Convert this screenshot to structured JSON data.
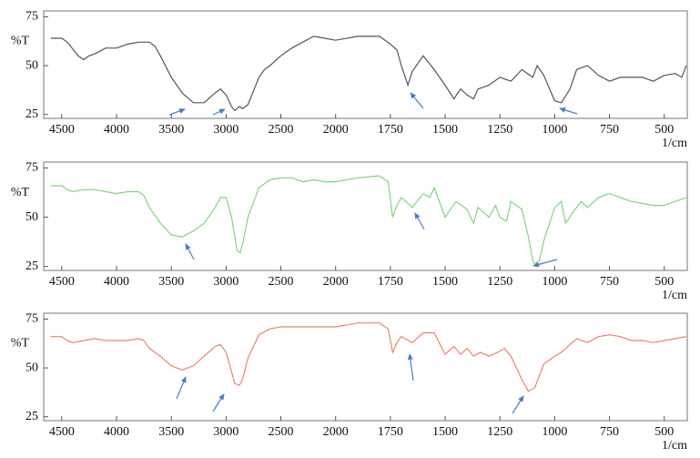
{
  "chart_data": [
    {
      "type": "line",
      "y_label": "%T",
      "x_label": "1/cm",
      "color": "#555555",
      "xlim": [
        4665,
        395
      ],
      "ylim": [
        23,
        78
      ],
      "xticks": [
        4500,
        4000,
        3500,
        3000,
        2500,
        2000,
        1750,
        1500,
        1250,
        1000,
        750,
        500
      ],
      "yticks": [
        25,
        50,
        75
      ],
      "x": [
        4600,
        4500,
        4450,
        4350,
        4300,
        4250,
        4200,
        4100,
        4000,
        3900,
        3800,
        3700,
        3650,
        3600,
        3500,
        3400,
        3300,
        3200,
        3100,
        3050,
        3000,
        2950,
        2920,
        2880,
        2850,
        2800,
        2700,
        2650,
        2600,
        2500,
        2400,
        2300,
        2200,
        2100,
        2000,
        1900,
        1800,
        1750,
        1720,
        1700,
        1670,
        1650,
        1600,
        1550,
        1500,
        1460,
        1430,
        1400,
        1370,
        1350,
        1300,
        1250,
        1200,
        1150,
        1100,
        1080,
        1050,
        1000,
        970,
        930,
        900,
        850,
        800,
        750,
        700,
        650,
        600,
        550,
        500,
        450,
        420,
        400
      ],
      "values": [
        64,
        64,
        62,
        55,
        53,
        55,
        56,
        59,
        59,
        61,
        62,
        62,
        60,
        55,
        44,
        36,
        31,
        31,
        36,
        38,
        35,
        29,
        27,
        29,
        28,
        30,
        44,
        48,
        50,
        55,
        59,
        62,
        65,
        64,
        63,
        65,
        65,
        61,
        58,
        50,
        40,
        47,
        55,
        48,
        40,
        33,
        38,
        35,
        33,
        38,
        40,
        44,
        42,
        48,
        44,
        50,
        45,
        32,
        31,
        38,
        48,
        50,
        45,
        42,
        44,
        44,
        44,
        42,
        45,
        46,
        44,
        50
      ]
    },
    {
      "type": "line",
      "y_label": "%T",
      "x_label": "1/cm",
      "color": "#7ed67e",
      "xlim": [
        4665,
        395
      ],
      "ylim": [
        23,
        78
      ],
      "xticks": [
        4500,
        4000,
        3500,
        3000,
        2500,
        2000,
        1750,
        1500,
        1250,
        1000,
        750,
        500
      ],
      "yticks": [
        25,
        50,
        75
      ],
      "x": [
        4600,
        4500,
        4450,
        4400,
        4300,
        4200,
        4100,
        4000,
        3900,
        3800,
        3750,
        3700,
        3600,
        3500,
        3400,
        3300,
        3200,
        3100,
        3050,
        3000,
        2950,
        2900,
        2870,
        2850,
        2800,
        2700,
        2600,
        2500,
        2400,
        2300,
        2200,
        2100,
        2000,
        1900,
        1800,
        1760,
        1740,
        1720,
        1700,
        1650,
        1600,
        1570,
        1550,
        1500,
        1470,
        1450,
        1400,
        1370,
        1350,
        1300,
        1270,
        1250,
        1220,
        1200,
        1150,
        1120,
        1100,
        1090,
        1070,
        1050,
        1000,
        970,
        950,
        920,
        880,
        850,
        800,
        750,
        700,
        650,
        600,
        550,
        500,
        450,
        400
      ],
      "values": [
        66,
        66,
        64,
        63,
        64,
        64,
        63,
        62,
        63,
        63,
        61,
        55,
        47,
        41,
        40,
        43,
        47,
        55,
        60,
        60,
        50,
        33,
        32,
        36,
        50,
        65,
        69,
        70,
        70,
        68,
        69,
        68,
        68,
        70,
        71,
        68,
        50,
        56,
        60,
        55,
        62,
        60,
        65,
        50,
        55,
        58,
        54,
        47,
        55,
        50,
        56,
        50,
        48,
        58,
        54,
        40,
        28,
        26,
        28,
        38,
        55,
        58,
        47,
        52,
        58,
        55,
        60,
        62,
        60,
        58,
        57,
        56,
        56,
        58,
        60
      ]
    },
    {
      "type": "line",
      "y_label": "%T",
      "x_label": "1/cm",
      "color": "#e8866a",
      "xlim": [
        4665,
        395
      ],
      "ylim": [
        23,
        78
      ],
      "xticks": [
        4500,
        4000,
        3500,
        3000,
        2500,
        2000,
        1750,
        1500,
        1250,
        1000,
        750,
        500
      ],
      "yticks": [
        25,
        50,
        75
      ],
      "x": [
        4600,
        4500,
        4450,
        4400,
        4300,
        4200,
        4100,
        4000,
        3900,
        3800,
        3750,
        3700,
        3600,
        3500,
        3400,
        3300,
        3200,
        3100,
        3050,
        3000,
        2950,
        2920,
        2880,
        2850,
        2800,
        2700,
        2600,
        2500,
        2400,
        2300,
        2200,
        2100,
        2000,
        1900,
        1800,
        1760,
        1740,
        1720,
        1700,
        1650,
        1600,
        1550,
        1500,
        1460,
        1430,
        1400,
        1370,
        1340,
        1300,
        1260,
        1230,
        1200,
        1150,
        1120,
        1090,
        1050,
        1000,
        970,
        930,
        900,
        850,
        800,
        750,
        700,
        650,
        600,
        550,
        500,
        450,
        400
      ],
      "values": [
        66,
        66,
        64,
        63,
        64,
        65,
        64,
        64,
        64,
        65,
        64,
        60,
        56,
        51,
        49,
        51,
        56,
        61,
        62,
        58,
        48,
        42,
        41,
        44,
        55,
        67,
        70,
        71,
        71,
        71,
        71,
        71,
        71,
        73,
        73,
        70,
        58,
        63,
        66,
        63,
        68,
        68,
        57,
        61,
        57,
        60,
        56,
        58,
        56,
        58,
        60,
        56,
        44,
        38,
        40,
        52,
        56,
        58,
        62,
        65,
        63,
        66,
        67,
        66,
        64,
        64,
        63,
        64,
        65,
        66
      ]
    }
  ]
}
